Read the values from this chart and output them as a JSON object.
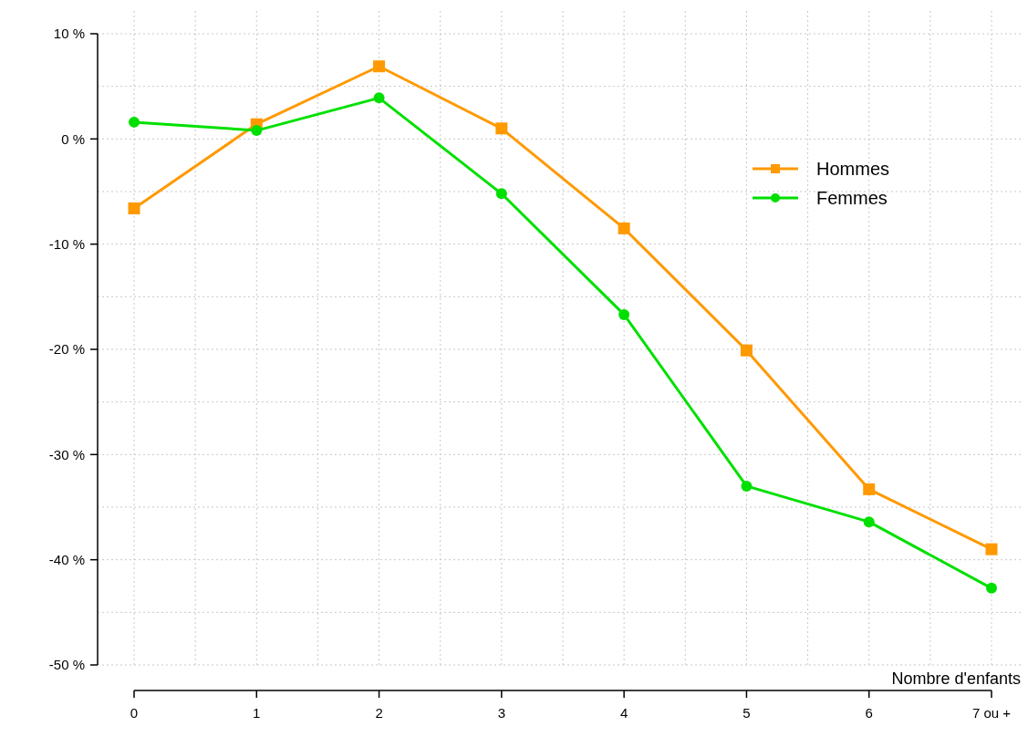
{
  "chart_data": {
    "type": "line",
    "xlabel": "Nombre d'enfants",
    "categories": [
      "0",
      "1",
      "2",
      "3",
      "4",
      "5",
      "6",
      "7 ou +"
    ],
    "series": [
      {
        "name": "Hommes",
        "color": "#ff9900",
        "marker": "square",
        "values": [
          -6.6,
          1.4,
          6.9,
          1.0,
          -8.5,
          -20.1,
          -33.3,
          -39.0
        ]
      },
      {
        "name": "Femmes",
        "color": "#00e000",
        "marker": "circle",
        "values": [
          1.6,
          0.8,
          3.9,
          -5.2,
          -16.7,
          -33.0,
          -36.4,
          -42.7
        ]
      }
    ],
    "ylim": [
      -50,
      10
    ],
    "yticks": [
      {
        "value": -50,
        "label": "-50 %"
      },
      {
        "value": -45,
        "label": null
      },
      {
        "value": -40,
        "label": "-40 %"
      },
      {
        "value": -35,
        "label": null
      },
      {
        "value": -30,
        "label": "-30 %"
      },
      {
        "value": -25,
        "label": null
      },
      {
        "value": -20,
        "label": "-20 %"
      },
      {
        "value": -15,
        "label": null
      },
      {
        "value": -10,
        "label": "-10 %"
      },
      {
        "value": -5,
        "label": null
      },
      {
        "value": 0,
        "label": "0 %"
      },
      {
        "value": 5,
        "label": null
      },
      {
        "value": 10,
        "label": "10 %"
      }
    ],
    "grid": true,
    "legend": "top right",
    "line_style": "solid"
  }
}
